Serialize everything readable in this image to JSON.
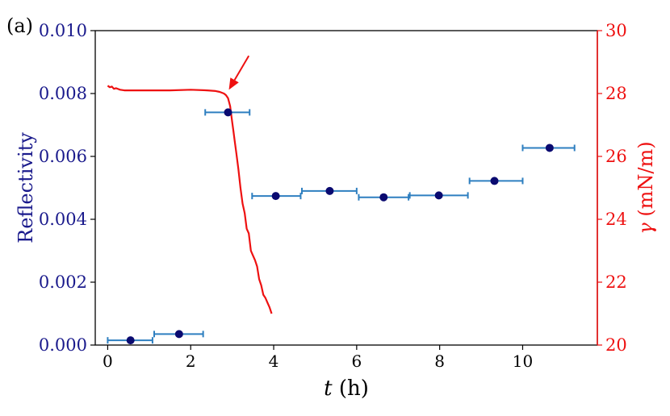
{
  "panel_label": "(a)",
  "colors": {
    "left_axis": "#1a1a8c",
    "right_axis": "#ee1111",
    "errorbar": "#2e7fc0",
    "marker": "#0a0a70",
    "tension_line": "#ee1111",
    "frame": "#000000"
  },
  "chart_data": {
    "type": "scatter",
    "xlabel_symbol": "t",
    "xlabel_unit": "(h)",
    "ylabel": "Reflectivity",
    "y2label_symbol": "γ",
    "y2label_unit": "(mN/m)",
    "xlim": [
      -0.3,
      11.8
    ],
    "ylim": [
      0.0,
      0.01
    ],
    "y2lim": [
      20,
      30
    ],
    "xticks": [
      0,
      2,
      4,
      6,
      8,
      10
    ],
    "xtick_labels": [
      "0",
      "2",
      "4",
      "6",
      "8",
      "10"
    ],
    "yticks": [
      0.0,
      0.002,
      0.004,
      0.006,
      0.008,
      0.01
    ],
    "ytick_labels": [
      "0.000",
      "0.002",
      "0.004",
      "0.006",
      "0.008",
      "0.010"
    ],
    "y2ticks": [
      20,
      22,
      24,
      26,
      28,
      30
    ],
    "y2tick_labels": [
      "20",
      "22",
      "24",
      "26",
      "28",
      "30"
    ],
    "reflectivity": {
      "x": [
        0.55,
        1.72,
        2.9,
        4.05,
        5.35,
        6.65,
        7.98,
        9.32,
        10.65
      ],
      "y": [
        0.00015,
        0.00035,
        0.0074,
        0.00474,
        0.0049,
        0.0047,
        0.00476,
        0.00522,
        0.00627
      ],
      "xerr_low": [
        0.0,
        1.12,
        2.35,
        3.48,
        4.68,
        6.05,
        7.28,
        8.72,
        10.0
      ],
      "xerr_high": [
        1.08,
        2.3,
        3.42,
        4.65,
        6.0,
        7.25,
        8.68,
        10.0,
        11.25
      ]
    },
    "surface_tension": {
      "x": [
        0.0,
        0.05,
        0.1,
        0.15,
        0.2,
        0.3,
        0.4,
        0.6,
        1.0,
        1.5,
        2.0,
        2.4,
        2.6,
        2.7,
        2.8,
        2.85,
        2.9,
        2.95,
        3.0,
        3.03,
        3.06,
        3.1,
        3.15,
        3.2,
        3.25,
        3.3,
        3.35,
        3.4,
        3.45,
        3.5,
        3.55,
        3.6,
        3.65,
        3.7,
        3.75,
        3.8,
        3.85,
        3.9,
        3.95
      ],
      "y": [
        28.25,
        28.2,
        28.22,
        28.15,
        28.17,
        28.12,
        28.1,
        28.1,
        28.1,
        28.1,
        28.12,
        28.1,
        28.08,
        28.05,
        28.0,
        27.95,
        27.85,
        27.6,
        27.1,
        26.8,
        26.5,
        26.1,
        25.6,
        25.0,
        24.5,
        24.2,
        23.7,
        23.55,
        23.0,
        22.85,
        22.7,
        22.5,
        22.1,
        21.9,
        21.6,
        21.5,
        21.35,
        21.2,
        21.0
      ]
    },
    "arrow": {
      "from": [
        3.4,
        29.2
      ],
      "to": [
        2.92,
        28.12
      ]
    }
  }
}
